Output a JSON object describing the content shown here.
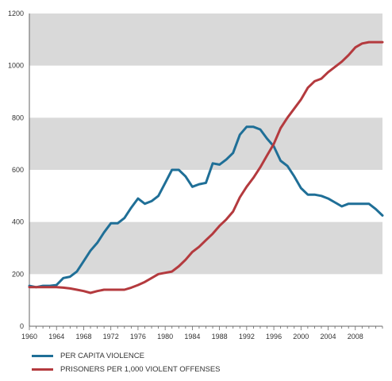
{
  "chart_data": {
    "type": "line",
    "title": "",
    "xlabel": "",
    "ylabel": "",
    "xlim": [
      1960,
      2012
    ],
    "ylim": [
      0,
      1200
    ],
    "y_ticks": [
      0,
      200,
      400,
      600,
      800,
      1000,
      1200
    ],
    "x_ticks": [
      1960,
      1964,
      1968,
      1972,
      1976,
      1980,
      1984,
      1988,
      1992,
      1996,
      2000,
      2004,
      2008
    ],
    "grid": "alternating horizontal bands",
    "band_color": "#d9d9d9",
    "legend_position": "bottom-left",
    "series": [
      {
        "name": "PER CAPITA VIOLENCE",
        "color": "#1f6f97",
        "x": [
          1960,
          1961,
          1962,
          1963,
          1964,
          1965,
          1966,
          1967,
          1968,
          1969,
          1970,
          1971,
          1972,
          1973,
          1974,
          1975,
          1976,
          1977,
          1978,
          1979,
          1980,
          1981,
          1982,
          1983,
          1984,
          1985,
          1986,
          1987,
          1988,
          1989,
          1990,
          1991,
          1992,
          1993,
          1994,
          1995,
          1996,
          1997,
          1998,
          1999,
          2000,
          2001,
          2002,
          2003,
          2004,
          2005,
          2006,
          2007,
          2008,
          2009,
          2010,
          2011,
          2012
        ],
        "values": [
          155,
          150,
          155,
          155,
          158,
          185,
          190,
          210,
          250,
          290,
          320,
          360,
          395,
          395,
          415,
          455,
          490,
          470,
          480,
          500,
          550,
          600,
          600,
          575,
          535,
          545,
          550,
          625,
          620,
          640,
          665,
          735,
          765,
          765,
          755,
          720,
          690,
          635,
          615,
          575,
          530,
          505,
          505,
          500,
          490,
          475,
          460,
          470,
          470,
          470,
          470,
          450,
          425
        ]
      },
      {
        "name": "PRISONERS PER 1,000 VIOLENT OFFENSES",
        "color": "#b43a3e",
        "x": [
          1960,
          1961,
          1962,
          1963,
          1964,
          1965,
          1966,
          1967,
          1968,
          1969,
          1970,
          1971,
          1972,
          1973,
          1974,
          1975,
          1976,
          1977,
          1978,
          1979,
          1980,
          1981,
          1982,
          1983,
          1984,
          1985,
          1986,
          1987,
          1988,
          1989,
          1990,
          1991,
          1992,
          1993,
          1994,
          1995,
          1996,
          1997,
          1998,
          1999,
          2000,
          2001,
          2002,
          2003,
          2004,
          2005,
          2006,
          2007,
          2008,
          2009,
          2010,
          2011,
          2012
        ],
        "values": [
          150,
          150,
          150,
          150,
          150,
          148,
          145,
          140,
          135,
          128,
          135,
          140,
          140,
          140,
          140,
          148,
          158,
          170,
          185,
          200,
          205,
          210,
          230,
          255,
          285,
          305,
          330,
          355,
          385,
          410,
          440,
          495,
          535,
          570,
          610,
          655,
          700,
          760,
          800,
          835,
          870,
          915,
          940,
          950,
          975,
          995,
          1015,
          1040,
          1070,
          1085,
          1090,
          1090,
          1090
        ]
      }
    ]
  }
}
